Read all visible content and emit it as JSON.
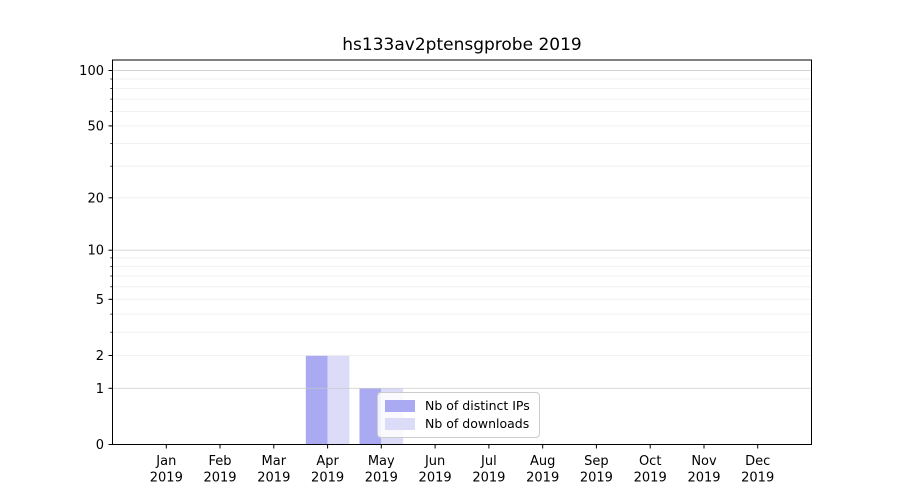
{
  "chart_data": {
    "type": "bar",
    "title": "hs133av2ptensgprobe 2019",
    "categories": [
      {
        "month": "Jan",
        "year": "2019"
      },
      {
        "month": "Feb",
        "year": "2019"
      },
      {
        "month": "Mar",
        "year": "2019"
      },
      {
        "month": "Apr",
        "year": "2019"
      },
      {
        "month": "May",
        "year": "2019"
      },
      {
        "month": "Jun",
        "year": "2019"
      },
      {
        "month": "Jul",
        "year": "2019"
      },
      {
        "month": "Aug",
        "year": "2019"
      },
      {
        "month": "Sep",
        "year": "2019"
      },
      {
        "month": "Oct",
        "year": "2019"
      },
      {
        "month": "Nov",
        "year": "2019"
      },
      {
        "month": "Dec",
        "year": "2019"
      }
    ],
    "series": [
      {
        "name": "Nb of distinct IPs",
        "color": "#a9aaf2",
        "values": [
          0,
          0,
          0,
          2,
          1,
          0,
          0,
          0,
          0,
          0,
          0,
          0
        ]
      },
      {
        "name": "Nb of downloads",
        "color": "#dcdcf9",
        "values": [
          0,
          0,
          0,
          2,
          1,
          0,
          0,
          0,
          0,
          0,
          0,
          0
        ]
      }
    ],
    "xlabel": "",
    "ylabel": "",
    "y_scale": "log1p",
    "ylim": [
      0,
      114
    ],
    "y_tick_values": [
      0,
      1,
      2,
      5,
      10,
      20,
      50,
      100
    ],
    "y_major_gridlines": [
      1,
      10,
      100
    ],
    "y_minor_gridlines": [
      2,
      3,
      4,
      5,
      6,
      7,
      8,
      9,
      20,
      30,
      40,
      50,
      60,
      70,
      80,
      90
    ],
    "grid": "on",
    "legend_location": "lower center (inside axes)",
    "colors": {
      "spine": "#000000",
      "major_grid": "#c9c9c9",
      "minor_grid": "#ececec",
      "tick_text": "#000000"
    }
  }
}
